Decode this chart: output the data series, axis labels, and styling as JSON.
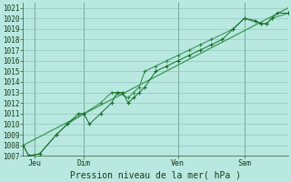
{
  "xlabel": "Pression niveau de la mer( hPa )",
  "ylim": [
    1007,
    1021.5
  ],
  "bg_color": "#b8e8e0",
  "grid_color": "#90c8c0",
  "line1_x": [
    0,
    0.5,
    1.5,
    3,
    4,
    5,
    5.5,
    6,
    7,
    8,
    8.5,
    9,
    9.5,
    10,
    10.5,
    11,
    12,
    13,
    14,
    15,
    16,
    17,
    18,
    19,
    20,
    21,
    21.5,
    22,
    22.5,
    23,
    24
  ],
  "line1_y": [
    1008,
    1007,
    1007.2,
    1009,
    1010,
    1011,
    1011,
    1010,
    1011,
    1012,
    1013,
    1013,
    1012,
    1012.5,
    1013,
    1013.5,
    1015,
    1015.5,
    1016,
    1016.5,
    1017,
    1017.5,
    1018,
    1019,
    1020,
    1019.8,
    1019.5,
    1019.5,
    1020,
    1020.5,
    1020.5
  ],
  "line2_x": [
    0,
    0.5,
    1.5,
    3,
    4,
    5.5,
    7,
    8,
    8.5,
    9.5,
    10,
    10.5,
    11,
    12,
    13,
    14,
    15,
    16,
    17,
    19,
    20,
    21.5,
    22,
    22.5,
    24
  ],
  "line2_y": [
    1008,
    1007,
    1007.2,
    1009,
    1010,
    1011,
    1012,
    1013,
    1013,
    1012.5,
    1013,
    1013.5,
    1015,
    1015.5,
    1016,
    1016.5,
    1017,
    1017.5,
    1018,
    1019,
    1020,
    1019.5,
    1019.5,
    1020,
    1020.5
  ],
  "trend_x": [
    0,
    24
  ],
  "trend_y": [
    1008,
    1021
  ],
  "line_color1": "#1a6b2a",
  "line_color2": "#2d8b45",
  "trend_color": "#3a9a50",
  "tick_labels_y": [
    1007,
    1008,
    1009,
    1010,
    1011,
    1012,
    1013,
    1014,
    1015,
    1016,
    1017,
    1018,
    1019,
    1020,
    1021
  ],
  "day_ticks": [
    {
      "x": 1.0,
      "label": "Jeu"
    },
    {
      "x": 5.5,
      "label": "Dim"
    },
    {
      "x": 14.0,
      "label": "Ven"
    },
    {
      "x": 20.0,
      "label": "Sam"
    }
  ],
  "day_vlines": [
    1.0,
    5.5,
    14.0,
    20.0
  ],
  "xlim": [
    0,
    24
  ]
}
